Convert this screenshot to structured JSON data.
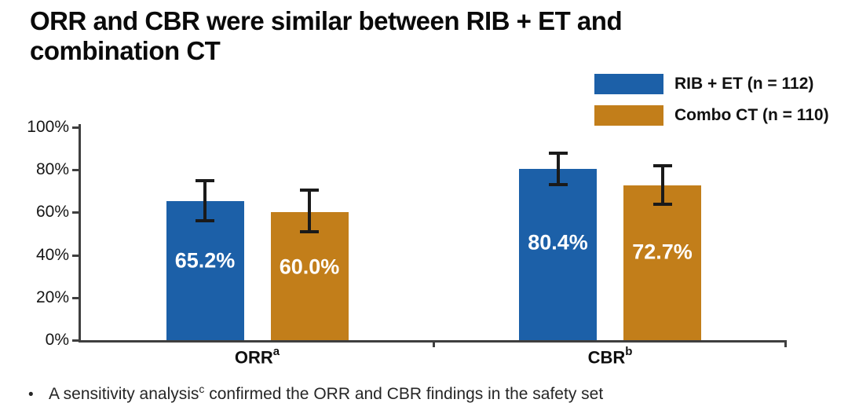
{
  "title": {
    "line1": "ORR and CBR were similar between RIB + ET and",
    "line2": "combination CT"
  },
  "footer": {
    "bullet": "•",
    "text_pre": "A sensitivity analysis",
    "sup": "c",
    "text_post": " confirmed the ORR and CBR findings in the safety set"
  },
  "colors": {
    "rib_et_blue": "#1C60A8",
    "combo_ct_orange": "#C27E1A",
    "axis": "#3f3f3f",
    "error_bar": "#1a1a1a",
    "bar_value_text": "#ffffff"
  },
  "chart_data": {
    "type": "bar",
    "title": "ORR and CBR were similar between RIB + ET and combination CT",
    "xlabel": "",
    "ylabel": "",
    "ylim": [
      0,
      100
    ],
    "grid": false,
    "legend_position": "top-right",
    "yticks": [
      {
        "label": "0%",
        "value": 0
      },
      {
        "label": "20%",
        "value": 20
      },
      {
        "label": "40%",
        "value": 40
      },
      {
        "label": "60%",
        "value": 60
      },
      {
        "label": "80%",
        "value": 80
      },
      {
        "label": "100%",
        "value": 100
      }
    ],
    "categories": [
      {
        "label": "ORR",
        "sup": "a"
      },
      {
        "label": "CBR",
        "sup": "b"
      }
    ],
    "series": [
      {
        "name": "RIB + ET (n = 112)",
        "color": "#1C60A8",
        "values": [
          65.2,
          80.4
        ],
        "labels": [
          "65.2%",
          "80.4%"
        ],
        "error_bars": [
          {
            "low": 56,
            "high": 75
          },
          {
            "low": 73,
            "high": 88
          }
        ]
      },
      {
        "name": "Combo CT (n = 110)",
        "color": "#C27E1A",
        "values": [
          60.0,
          72.7
        ],
        "labels": [
          "60.0%",
          "72.7%"
        ],
        "error_bars": [
          {
            "low": 51,
            "high": 70.5
          },
          {
            "low": 64,
            "high": 82
          }
        ]
      }
    ]
  }
}
